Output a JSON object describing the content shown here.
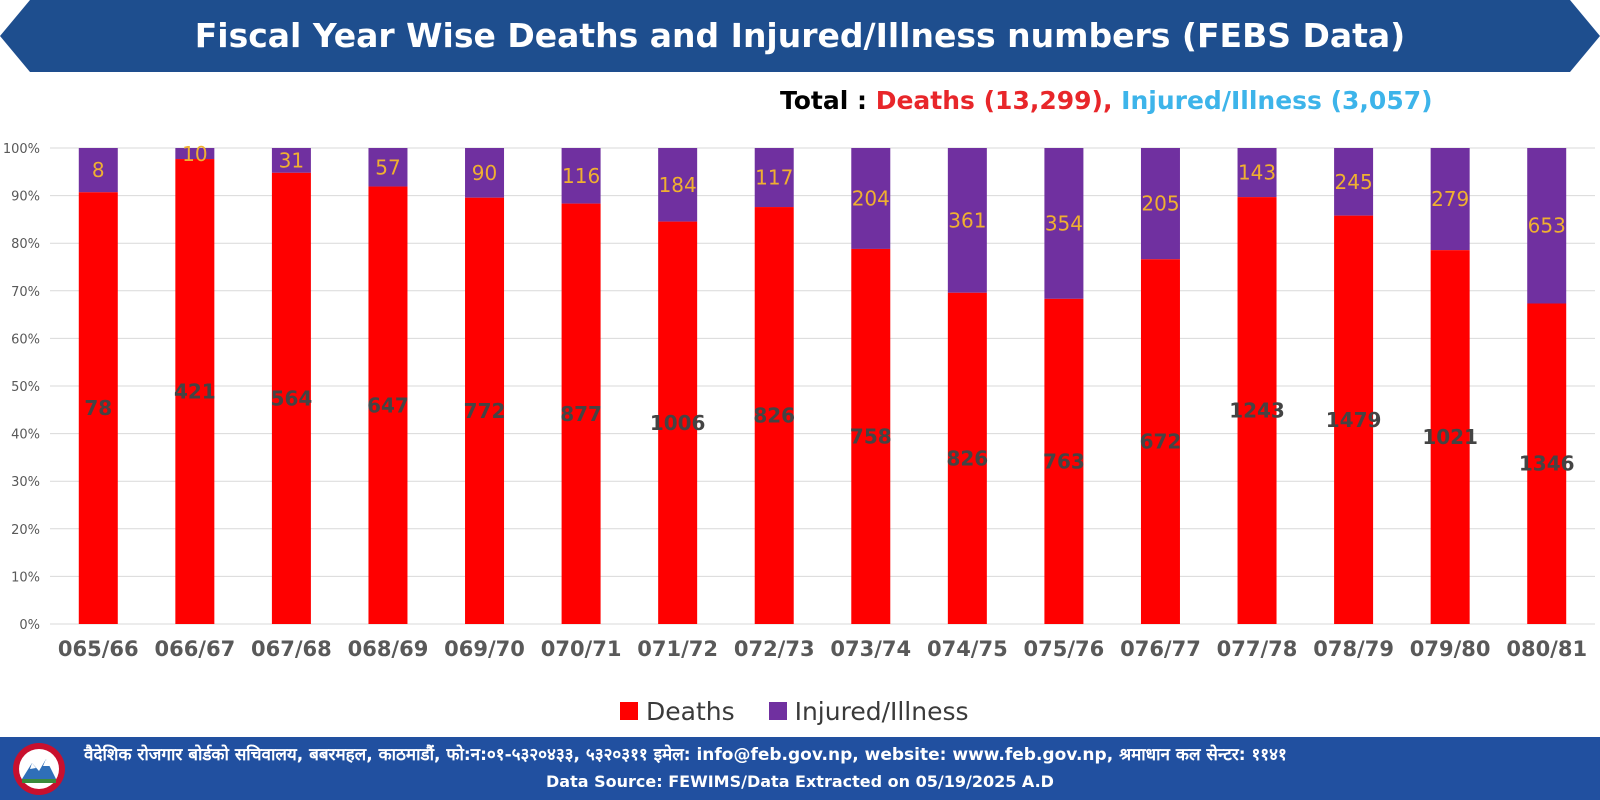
{
  "header": {
    "title": "Fiscal Year Wise Deaths and Injured/Illness numbers (FEBS Data)",
    "color": "#1e4e8e"
  },
  "totals": {
    "label": "Total :",
    "deaths": "Deaths (13,299),",
    "injured": "Injured/Illness (3,057)"
  },
  "chart_data": {
    "type": "bar",
    "stacking": "percent",
    "categories": [
      "065/66",
      "066/67",
      "067/68",
      "068/69",
      "069/70",
      "070/71",
      "071/72",
      "072/73",
      "073/74",
      "074/75",
      "075/76",
      "076/77",
      "077/78",
      "078/79",
      "079/80",
      "080/81"
    ],
    "series": [
      {
        "name": "Deaths",
        "color": "#ff0000",
        "label_color": "#444444",
        "values": [
          78,
          421,
          564,
          647,
          772,
          877,
          1006,
          826,
          758,
          826,
          763,
          672,
          1243,
          1479,
          1021,
          1346
        ]
      },
      {
        "name": "Injured/Illness",
        "color": "#7030a0",
        "label_color": "#f0b030",
        "values": [
          8,
          10,
          31,
          57,
          90,
          116,
          184,
          117,
          204,
          361,
          354,
          205,
          143,
          245,
          279,
          653
        ]
      }
    ],
    "y_ticks": [
      "0%",
      "10%",
      "20%",
      "30%",
      "40%",
      "50%",
      "60%",
      "70%",
      "80%",
      "90%",
      "100%"
    ],
    "ylim": [
      0,
      100
    ],
    "grid": true,
    "legend": "bottom"
  },
  "footer": {
    "line1": "वैदेशिक रोजगार बोर्डको सचिवालय,  बबरमहल, काठमाडौं,   फो:न:०१-५३२०४३३, ५३२०३११   इमेल: info@feb.gov.np,   website: www.feb.gov.np,   श्रमाधान कल सेन्टर: ११४१",
    "line2": "Data Source: FEWIMS/Data Extracted on 05/19/2025 A.D",
    "color": "#2150a0"
  }
}
